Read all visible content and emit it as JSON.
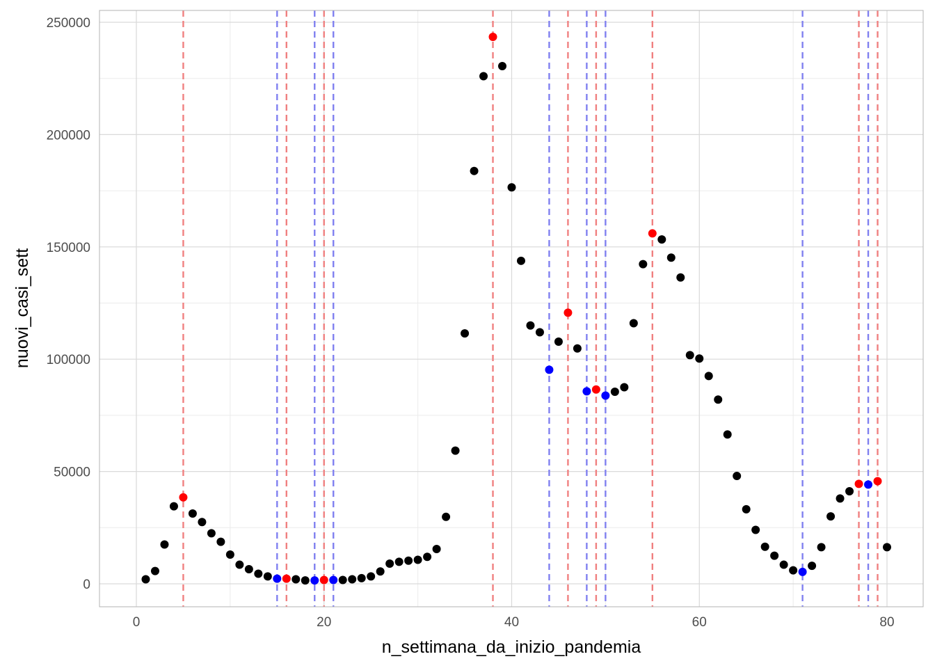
{
  "chart_data": {
    "type": "scatter",
    "title": "",
    "xlabel": "n_settimana_da_inizio_pandemia",
    "ylabel": "nuovi_casi_sett",
    "xlim": [
      -4,
      82
    ],
    "ylim": [
      -10000,
      255000
    ],
    "x_ticks": [
      0,
      20,
      40,
      60,
      80
    ],
    "x_tick_labels": [
      "0",
      "20",
      "40",
      "60",
      "80"
    ],
    "y_ticks": [
      0,
      50000,
      100000,
      150000,
      200000,
      250000
    ],
    "y_tick_labels": [
      "0",
      "50000",
      "100000",
      "150000",
      "200000",
      "250000"
    ],
    "grid": true,
    "legend": "none",
    "colors": {
      "default_point": "#000000",
      "max_point": "#ff0000",
      "min_point": "#0000ff",
      "max_line": "#f08080",
      "min_line": "#8080f0",
      "panel_border": "#b3b3b3",
      "grid_major": "#d9d9d9",
      "grid_minor": "#ebebeb"
    },
    "vlines_max": [
      5,
      16,
      20,
      38,
      46,
      49,
      55,
      77,
      79
    ],
    "vlines_min": [
      15,
      19,
      21,
      44,
      48,
      50,
      71,
      78
    ],
    "series": [
      {
        "kind": "normal",
        "points": [
          [
            1,
            2000
          ],
          [
            2,
            5700
          ],
          [
            3,
            17500
          ],
          [
            4,
            34500
          ],
          [
            6,
            31300
          ],
          [
            7,
            27500
          ],
          [
            8,
            22500
          ],
          [
            9,
            18700
          ],
          [
            10,
            13000
          ],
          [
            11,
            8500
          ],
          [
            12,
            6500
          ],
          [
            13,
            4500
          ],
          [
            14,
            3300
          ],
          [
            17,
            2000
          ],
          [
            18,
            1500
          ],
          [
            22,
            1700
          ],
          [
            23,
            2000
          ],
          [
            24,
            2500
          ],
          [
            25,
            3300
          ],
          [
            26,
            5500
          ],
          [
            27,
            9000
          ],
          [
            28,
            9800
          ],
          [
            29,
            10300
          ],
          [
            30,
            10700
          ],
          [
            31,
            12000
          ],
          [
            32,
            15500
          ],
          [
            33,
            29800
          ],
          [
            34,
            59300
          ],
          [
            35,
            111500
          ],
          [
            36,
            183800
          ],
          [
            37,
            226000
          ],
          [
            39,
            230500
          ],
          [
            40,
            176500
          ],
          [
            41,
            143800
          ],
          [
            42,
            115000
          ],
          [
            43,
            112000
          ],
          [
            45,
            107800
          ],
          [
            47,
            104800
          ],
          [
            51,
            85500
          ],
          [
            52,
            87500
          ],
          [
            53,
            116000
          ],
          [
            54,
            142300
          ],
          [
            56,
            153300
          ],
          [
            57,
            145200
          ],
          [
            58,
            136400
          ],
          [
            59,
            101800
          ],
          [
            60,
            100300
          ],
          [
            61,
            92500
          ],
          [
            62,
            82000
          ],
          [
            63,
            66500
          ],
          [
            64,
            48000
          ],
          [
            65,
            33200
          ],
          [
            66,
            24000
          ],
          [
            67,
            16500
          ],
          [
            68,
            12500
          ],
          [
            69,
            8500
          ],
          [
            70,
            6000
          ],
          [
            72,
            8000
          ],
          [
            73,
            16300
          ],
          [
            74,
            30000
          ],
          [
            75,
            38000
          ],
          [
            76,
            41200
          ],
          [
            80,
            16300
          ]
        ]
      },
      {
        "kind": "max",
        "points": [
          [
            5,
            38500
          ],
          [
            16,
            2300
          ],
          [
            20,
            1700
          ],
          [
            38,
            243500
          ],
          [
            46,
            120700
          ],
          [
            49,
            86500
          ],
          [
            55,
            156000
          ],
          [
            77,
            44500
          ],
          [
            79,
            45700
          ]
        ]
      },
      {
        "kind": "min",
        "points": [
          [
            15,
            2300
          ],
          [
            19,
            1500
          ],
          [
            21,
            1700
          ],
          [
            44,
            95300
          ],
          [
            48,
            85700
          ],
          [
            50,
            83800
          ],
          [
            71,
            5300
          ],
          [
            78,
            44200
          ]
        ]
      }
    ]
  }
}
